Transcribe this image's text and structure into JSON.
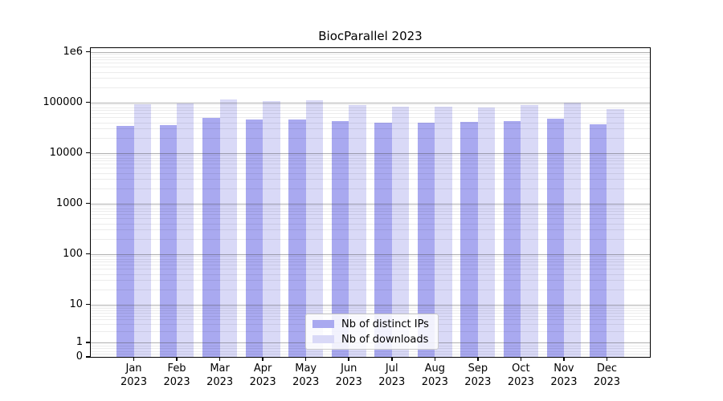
{
  "title": "BiocParallel 2023",
  "chart_data": {
    "type": "bar",
    "title": "BiocParallel 2023",
    "categories": [
      "Jan 2023",
      "Feb 2023",
      "Mar 2023",
      "Apr 2023",
      "May 2023",
      "Jun 2023",
      "Jul 2023",
      "Aug 2023",
      "Sep 2023",
      "Oct 2023",
      "Nov 2023",
      "Dec 2023"
    ],
    "series": [
      {
        "name": "Nb of distinct IPs",
        "color": "#a9a9f0",
        "values": [
          34000,
          35000,
          49500,
          46000,
          46000,
          43000,
          40000,
          39000,
          40500,
          43000,
          48000,
          37000
        ]
      },
      {
        "name": "Nb of downloads",
        "color": "#d9d9f7",
        "values": [
          90000,
          95000,
          112000,
          105000,
          110000,
          87500,
          81500,
          82500,
          78500,
          86500,
          99000,
          72000
        ]
      }
    ],
    "xlabel": "",
    "ylabel": "",
    "yscale": "symlog",
    "ylim": [
      0,
      1000000
    ],
    "y_tick_labels": [
      "1e6",
      "100000",
      "10000",
      "1000",
      "100",
      "10",
      "1",
      "0"
    ],
    "y_tick_values": [
      1000000,
      100000,
      10000,
      1000,
      100,
      10,
      1,
      0
    ],
    "legend_position": "lower center",
    "grid": "horizontal major and minor gridlines, log-spaced"
  }
}
